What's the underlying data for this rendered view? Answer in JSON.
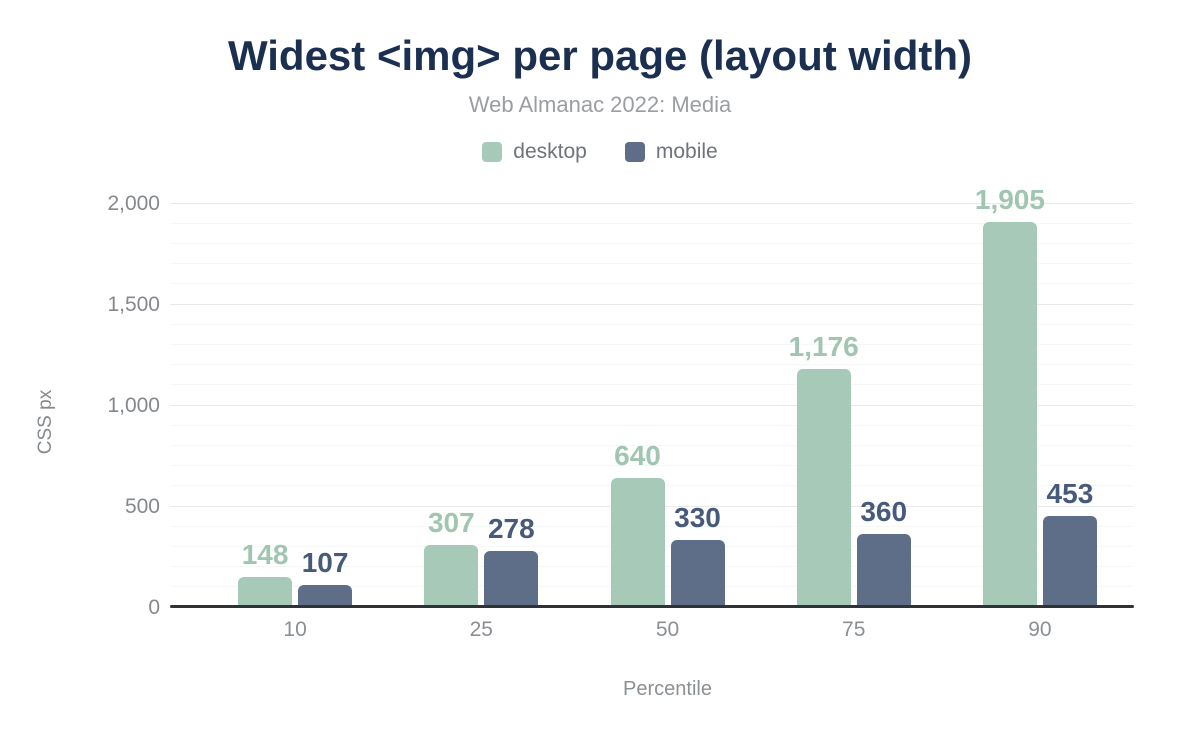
{
  "chart_data": {
    "type": "bar",
    "title": "Widest <img> per page (layout width)",
    "subtitle": "Web Almanac 2022: Media",
    "xlabel": "Percentile",
    "ylabel": "CSS px",
    "categories": [
      "10",
      "25",
      "50",
      "75",
      "90"
    ],
    "series": [
      {
        "name": "desktop",
        "color": "#a6cab7",
        "label_color": "#a0c6b2",
        "values": [
          148,
          307,
          640,
          1176,
          1905
        ],
        "labels": [
          "148",
          "307",
          "640",
          "1,176",
          "1,905"
        ]
      },
      {
        "name": "mobile",
        "color": "#5e6e88",
        "label_color": "#475a7c",
        "values": [
          107,
          278,
          330,
          360,
          453
        ],
        "labels": [
          "107",
          "278",
          "330",
          "360",
          "453"
        ]
      }
    ],
    "ylim": [
      0,
      2000
    ],
    "yticks": [
      {
        "value": 0,
        "label": "0"
      },
      {
        "value": 500,
        "label": "500"
      },
      {
        "value": 1000,
        "label": "1,000"
      },
      {
        "value": 1500,
        "label": "1,500"
      },
      {
        "value": 2000,
        "label": "2,000"
      }
    ],
    "grid": {
      "minor_step": 100,
      "major_step": 500,
      "grid_on": true
    },
    "legend_position": "top",
    "colors": {
      "title": "#1b2f51",
      "subtitle": "#9a9da1",
      "axis_text": "#85898d",
      "axis_line": "#2f3237",
      "grid_major": "#e8eaea",
      "grid_minor": "#f6f7f7",
      "background": "#ffffff"
    }
  }
}
